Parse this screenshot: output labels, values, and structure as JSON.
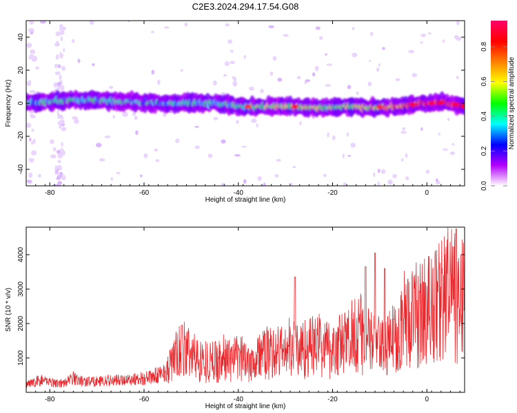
{
  "figure_title": "C2E3.2024.294.17.54.G08",
  "chart_data": [
    {
      "type": "heatmap",
      "xlabel": "Height of straight line (km)",
      "ylabel": "Frequency (Hz)",
      "xlim": [
        -85,
        8
      ],
      "ylim": [
        -50,
        50
      ],
      "xticks": [
        -80,
        -60,
        -40,
        -20,
        0
      ],
      "yticks": [
        -40,
        -20,
        0,
        20,
        40
      ],
      "colorbar": {
        "label": "Normalized spectral amplitude",
        "range": [
          0,
          0.95
        ],
        "ticks": [
          0.0,
          0.2,
          0.4,
          0.6,
          0.8
        ],
        "colormap": [
          "#ffffff",
          "#b300ff",
          "#0000ff",
          "#00ffff",
          "#00ff00",
          "#ffff00",
          "#ff8000",
          "#ff0000",
          "#ff0066"
        ]
      },
      "ridge": [
        {
          "x": -84,
          "f": 0.5,
          "amp": 0.35
        },
        {
          "x": -80,
          "f": 1.0,
          "amp": 0.4
        },
        {
          "x": -76,
          "f": 2.0,
          "amp": 0.42
        },
        {
          "x": -72,
          "f": 2.0,
          "amp": 0.4
        },
        {
          "x": -68,
          "f": 1.5,
          "amp": 0.4
        },
        {
          "x": -64,
          "f": 1.0,
          "amp": 0.4
        },
        {
          "x": -60,
          "f": 0.5,
          "amp": 0.4
        },
        {
          "x": -56,
          "f": 0.0,
          "amp": 0.38
        },
        {
          "x": -52,
          "f": 0.0,
          "amp": 0.38
        },
        {
          "x": -48,
          "f": 0.0,
          "amp": 0.4
        },
        {
          "x": -44,
          "f": 0.0,
          "amp": 0.42
        },
        {
          "x": -40,
          "f": -2.0,
          "amp": 0.45
        },
        {
          "x": -36,
          "f": -2.0,
          "amp": 0.55
        },
        {
          "x": -32,
          "f": -2.0,
          "amp": 0.55
        },
        {
          "x": -28,
          "f": -2.0,
          "amp": 0.6
        },
        {
          "x": -24,
          "f": -2.5,
          "amp": 0.55
        },
        {
          "x": -20,
          "f": -2.5,
          "amp": 0.5
        },
        {
          "x": -16,
          "f": -2.0,
          "amp": 0.55
        },
        {
          "x": -12,
          "f": -2.5,
          "amp": 0.6
        },
        {
          "x": -8,
          "f": -2.0,
          "amp": 0.7
        },
        {
          "x": -4,
          "f": -1.0,
          "amp": 0.8
        },
        {
          "x": 0,
          "f": 0.0,
          "amp": 0.85
        },
        {
          "x": 4,
          "f": 0.5,
          "amp": 0.9
        },
        {
          "x": 7,
          "f": -1.0,
          "amp": 0.9
        }
      ]
    },
    {
      "type": "line",
      "xlabel": "Height of straight line (km)",
      "ylabel": "SNR (10 * v/v)",
      "xlim": [
        -85,
        8
      ],
      "ylim": [
        0,
        4800
      ],
      "xticks": [
        -80,
        -60,
        -40,
        -20,
        0
      ],
      "yticks": [
        1000,
        2000,
        3000,
        4000
      ],
      "line_color": "#e8292e",
      "x": [
        -85,
        -83,
        -81,
        -79,
        -77,
        -75,
        -73,
        -71,
        -69,
        -67,
        -65,
        -63,
        -61,
        -59,
        -57,
        -55,
        -53,
        -51,
        -49,
        -47,
        -45,
        -43,
        -41,
        -39,
        -37,
        -35,
        -33,
        -31,
        -29,
        -27,
        -25,
        -23,
        -21,
        -19,
        -17,
        -15,
        -13,
        -11,
        -9,
        -7,
        -5,
        -3,
        -1,
        1,
        3,
        5,
        7,
        8
      ],
      "y": [
        200,
        320,
        350,
        280,
        260,
        420,
        320,
        320,
        330,
        350,
        350,
        380,
        400,
        420,
        500,
        650,
        1100,
        1250,
        1000,
        900,
        900,
        1000,
        950,
        1000,
        950,
        1100,
        1150,
        1200,
        1300,
        1250,
        1300,
        1400,
        1250,
        1350,
        1450,
        1900,
        1500,
        1400,
        1200,
        1600,
        2100,
        2200,
        2300,
        2500,
        2700,
        3000,
        2400,
        3000
      ],
      "peaks": [
        {
          "x": -52,
          "y": 1950
        },
        {
          "x": -28,
          "y": 3350
        },
        {
          "x": -13,
          "y": 3650
        },
        {
          "x": -11,
          "y": 4050
        },
        {
          "x": -9,
          "y": 3600
        },
        {
          "x": 6.2,
          "y": 4750
        }
      ]
    }
  ]
}
